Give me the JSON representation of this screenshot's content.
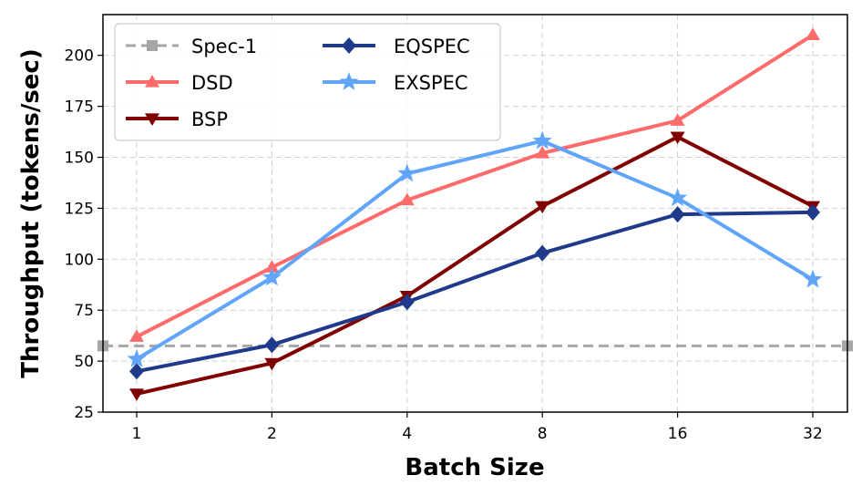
{
  "chart_data": {
    "type": "line",
    "title": "",
    "xlabel": "Batch Size",
    "ylabel": "Throughput (tokens/sec)",
    "categories": [
      "1",
      "2",
      "4",
      "8",
      "16",
      "32"
    ],
    "ylim": [
      25,
      220
    ],
    "yticks": [
      25,
      50,
      75,
      100,
      125,
      150,
      175,
      200
    ],
    "grid": true,
    "legend_position": "top-left",
    "baseline": {
      "name": "Spec-1",
      "value": 57.5,
      "color": "#a6a6a6",
      "marker": "square",
      "dashed": true
    },
    "series": [
      {
        "name": "DSD",
        "color": "#ff6b6b",
        "marker": "triangle-up",
        "values": [
          62,
          96,
          129,
          152,
          168,
          210
        ]
      },
      {
        "name": "BSP",
        "color": "#800000",
        "marker": "triangle-down",
        "values": [
          34,
          49,
          82,
          126,
          160,
          126
        ]
      },
      {
        "name": "EQSPEC",
        "color": "#1f3a8a",
        "marker": "diamond",
        "values": [
          45,
          58,
          79,
          103,
          122,
          123
        ]
      },
      {
        "name": "EXSPEC",
        "color": "#60a5fa",
        "marker": "star",
        "values": [
          51,
          91,
          142,
          158,
          130,
          90
        ]
      }
    ]
  }
}
